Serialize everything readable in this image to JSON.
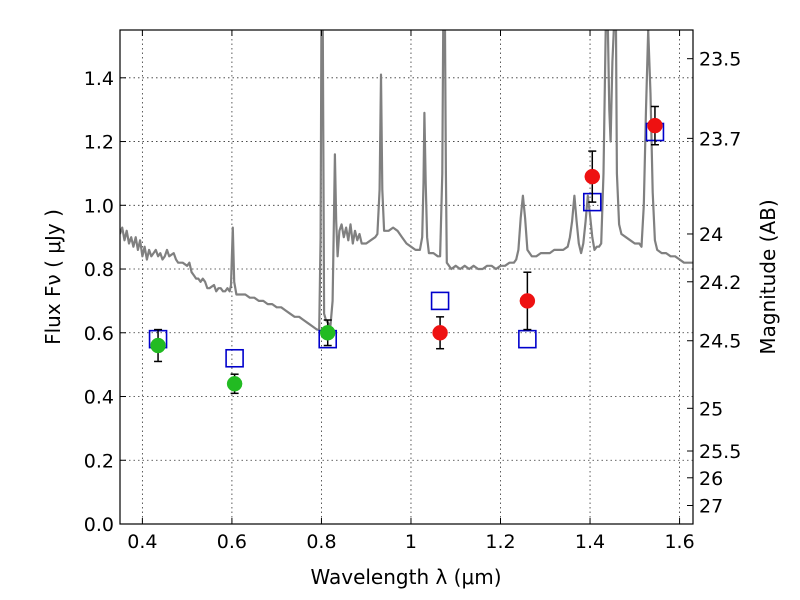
{
  "chart_data": {
    "type": "scatter",
    "title": "",
    "xlabel": "Wavelength  λ (μm)",
    "ylabel": "Flux  Fν  ( μJy )",
    "y2label": "Magnitude (AB)",
    "xlim": [
      0.35,
      1.63
    ],
    "ylim": [
      0.0,
      1.55
    ],
    "grid": true,
    "x_ticks": [
      {
        "value": 0.4,
        "label": "0.4"
      },
      {
        "value": 0.6,
        "label": "0.6"
      },
      {
        "value": 0.8,
        "label": "0.8"
      },
      {
        "value": 1.0,
        "label": "1"
      },
      {
        "value": 1.2,
        "label": "1.2"
      },
      {
        "value": 1.4,
        "label": "1.4"
      },
      {
        "value": 1.6,
        "label": "1.6"
      }
    ],
    "y_ticks": [
      {
        "value": 0.0,
        "label": "0.0"
      },
      {
        "value": 0.2,
        "label": "0.2"
      },
      {
        "value": 0.4,
        "label": "0.4"
      },
      {
        "value": 0.6,
        "label": "0.6"
      },
      {
        "value": 0.8,
        "label": "0.8"
      },
      {
        "value": 1.0,
        "label": "1.0"
      },
      {
        "value": 1.2,
        "label": "1.2"
      },
      {
        "value": 1.4,
        "label": "1.4"
      }
    ],
    "y2_ticks": [
      {
        "flux": 1.46,
        "label": "23.5"
      },
      {
        "flux": 1.21,
        "label": "23.7"
      },
      {
        "flux": 0.91,
        "label": "24"
      },
      {
        "flux": 0.76,
        "label": "24.2"
      },
      {
        "flux": 0.575,
        "label": "24.5"
      },
      {
        "flux": 0.363,
        "label": "25"
      },
      {
        "flux": 0.229,
        "label": "25.5"
      },
      {
        "flux": 0.145,
        "label": "26"
      },
      {
        "flux": 0.058,
        "label": "27"
      }
    ],
    "colors": {
      "model": "#808080",
      "optical": "#22bb22",
      "nir": "#ee1111",
      "model_phot": "#0000cc",
      "errorbar": "#000000"
    },
    "model_spectrum": [
      [
        0.35,
        0.91
      ],
      [
        0.355,
        0.93
      ],
      [
        0.36,
        0.89
      ],
      [
        0.365,
        0.92
      ],
      [
        0.37,
        0.88
      ],
      [
        0.375,
        0.9
      ],
      [
        0.38,
        0.87
      ],
      [
        0.385,
        0.9
      ],
      [
        0.39,
        0.86
      ],
      [
        0.395,
        0.89
      ],
      [
        0.4,
        0.84
      ],
      [
        0.405,
        0.87
      ],
      [
        0.41,
        0.83
      ],
      [
        0.415,
        0.86
      ],
      [
        0.42,
        0.84
      ],
      [
        0.425,
        0.85
      ],
      [
        0.43,
        0.86
      ],
      [
        0.435,
        0.84
      ],
      [
        0.44,
        0.85
      ],
      [
        0.445,
        0.83
      ],
      [
        0.45,
        0.84
      ],
      [
        0.455,
        0.86
      ],
      [
        0.46,
        0.84
      ],
      [
        0.47,
        0.85
      ],
      [
        0.475,
        0.83
      ],
      [
        0.48,
        0.82
      ],
      [
        0.49,
        0.82
      ],
      [
        0.5,
        0.81
      ],
      [
        0.505,
        0.82
      ],
      [
        0.51,
        0.79
      ],
      [
        0.515,
        0.78
      ],
      [
        0.52,
        0.77
      ],
      [
        0.525,
        0.77
      ],
      [
        0.53,
        0.76
      ],
      [
        0.535,
        0.77
      ],
      [
        0.54,
        0.76
      ],
      [
        0.545,
        0.74
      ],
      [
        0.55,
        0.74
      ],
      [
        0.56,
        0.75
      ],
      [
        0.565,
        0.73
      ],
      [
        0.57,
        0.74
      ],
      [
        0.575,
        0.74
      ],
      [
        0.58,
        0.73
      ],
      [
        0.585,
        0.73
      ],
      [
        0.59,
        0.74
      ],
      [
        0.595,
        0.73
      ],
      [
        0.598,
        0.75
      ],
      [
        0.6,
        0.84
      ],
      [
        0.602,
        0.93
      ],
      [
        0.605,
        0.76
      ],
      [
        0.61,
        0.72
      ],
      [
        0.62,
        0.72
      ],
      [
        0.63,
        0.72
      ],
      [
        0.64,
        0.71
      ],
      [
        0.65,
        0.71
      ],
      [
        0.66,
        0.7
      ],
      [
        0.67,
        0.7
      ],
      [
        0.68,
        0.69
      ],
      [
        0.69,
        0.69
      ],
      [
        0.7,
        0.68
      ],
      [
        0.71,
        0.68
      ],
      [
        0.72,
        0.67
      ],
      [
        0.73,
        0.66
      ],
      [
        0.74,
        0.65
      ],
      [
        0.75,
        0.65
      ],
      [
        0.76,
        0.64
      ],
      [
        0.77,
        0.63
      ],
      [
        0.78,
        0.62
      ],
      [
        0.79,
        0.61
      ],
      [
        0.795,
        0.61
      ],
      [
        0.798,
        0.9
      ],
      [
        0.8,
        1.55
      ],
      [
        0.803,
        1.55
      ],
      [
        0.806,
        0.66
      ],
      [
        0.81,
        0.64
      ],
      [
        0.815,
        0.63
      ],
      [
        0.82,
        0.62
      ],
      [
        0.825,
        0.7
      ],
      [
        0.828,
        0.97
      ],
      [
        0.83,
        1.16
      ],
      [
        0.833,
        0.95
      ],
      [
        0.836,
        0.84
      ],
      [
        0.84,
        0.92
      ],
      [
        0.845,
        0.94
      ],
      [
        0.85,
        0.9
      ],
      [
        0.855,
        0.93
      ],
      [
        0.86,
        0.89
      ],
      [
        0.865,
        0.94
      ],
      [
        0.87,
        0.88
      ],
      [
        0.875,
        0.92
      ],
      [
        0.88,
        0.89
      ],
      [
        0.885,
        0.91
      ],
      [
        0.89,
        0.88
      ],
      [
        0.9,
        0.88
      ],
      [
        0.91,
        0.89
      ],
      [
        0.92,
        0.9
      ],
      [
        0.925,
        0.91
      ],
      [
        0.93,
        1.05
      ],
      [
        0.933,
        1.41
      ],
      [
        0.936,
        1.05
      ],
      [
        0.94,
        0.92
      ],
      [
        0.95,
        0.92
      ],
      [
        0.96,
        0.93
      ],
      [
        0.97,
        0.92
      ],
      [
        0.98,
        0.9
      ],
      [
        0.99,
        0.88
      ],
      [
        1.0,
        0.87
      ],
      [
        1.01,
        0.86
      ],
      [
        1.02,
        0.86
      ],
      [
        1.025,
        0.9
      ],
      [
        1.028,
        1.07
      ],
      [
        1.03,
        1.29
      ],
      [
        1.033,
        1.07
      ],
      [
        1.036,
        0.9
      ],
      [
        1.04,
        0.85
      ],
      [
        1.05,
        0.85
      ],
      [
        1.06,
        0.84
      ],
      [
        1.065,
        0.84
      ],
      [
        1.07,
        1.1
      ],
      [
        1.072,
        1.55
      ],
      [
        1.076,
        1.55
      ],
      [
        1.078,
        1.1
      ],
      [
        1.08,
        0.82
      ],
      [
        1.09,
        0.8
      ],
      [
        1.1,
        0.81
      ],
      [
        1.11,
        0.8
      ],
      [
        1.12,
        0.81
      ],
      [
        1.13,
        0.8
      ],
      [
        1.14,
        0.81
      ],
      [
        1.15,
        0.8
      ],
      [
        1.16,
        0.8
      ],
      [
        1.17,
        0.81
      ],
      [
        1.18,
        0.81
      ],
      [
        1.19,
        0.8
      ],
      [
        1.2,
        0.81
      ],
      [
        1.21,
        0.81
      ],
      [
        1.22,
        0.82
      ],
      [
        1.23,
        0.82
      ],
      [
        1.235,
        0.83
      ],
      [
        1.24,
        0.86
      ],
      [
        1.245,
        0.96
      ],
      [
        1.25,
        1.03
      ],
      [
        1.255,
        0.96
      ],
      [
        1.26,
        0.86
      ],
      [
        1.27,
        0.84
      ],
      [
        1.28,
        0.84
      ],
      [
        1.29,
        0.85
      ],
      [
        1.3,
        0.85
      ],
      [
        1.31,
        0.85
      ],
      [
        1.32,
        0.86
      ],
      [
        1.33,
        0.86
      ],
      [
        1.34,
        0.86
      ],
      [
        1.35,
        0.87
      ],
      [
        1.355,
        0.9
      ],
      [
        1.36,
        0.95
      ],
      [
        1.365,
        1.03
      ],
      [
        1.37,
        0.95
      ],
      [
        1.375,
        0.88
      ],
      [
        1.38,
        0.85
      ],
      [
        1.385,
        0.88
      ],
      [
        1.39,
        0.95
      ],
      [
        1.395,
        1.03
      ],
      [
        1.4,
        0.97
      ],
      [
        1.405,
        0.9
      ],
      [
        1.41,
        0.86
      ],
      [
        1.415,
        0.87
      ],
      [
        1.42,
        0.87
      ],
      [
        1.425,
        0.88
      ],
      [
        1.43,
        1.1
      ],
      [
        1.435,
        1.55
      ],
      [
        1.44,
        1.55
      ],
      [
        1.443,
        1.3
      ],
      [
        1.446,
        1.2
      ],
      [
        1.45,
        1.45
      ],
      [
        1.453,
        1.55
      ],
      [
        1.458,
        1.55
      ],
      [
        1.46,
        1.1
      ],
      [
        1.465,
        0.94
      ],
      [
        1.47,
        0.91
      ],
      [
        1.48,
        0.9
      ],
      [
        1.49,
        0.89
      ],
      [
        1.5,
        0.88
      ],
      [
        1.51,
        0.88
      ],
      [
        1.515,
        0.87
      ],
      [
        1.52,
        1.0
      ],
      [
        1.525,
        1.3
      ],
      [
        1.53,
        1.55
      ],
      [
        1.535,
        1.35
      ],
      [
        1.54,
        1.04
      ],
      [
        1.545,
        0.89
      ],
      [
        1.55,
        0.86
      ],
      [
        1.56,
        0.85
      ],
      [
        1.57,
        0.85
      ],
      [
        1.58,
        0.84
      ],
      [
        1.59,
        0.84
      ],
      [
        1.6,
        0.83
      ],
      [
        1.61,
        0.82
      ],
      [
        1.62,
        0.82
      ],
      [
        1.63,
        0.82
      ]
    ],
    "optical_photometry": [
      {
        "x": 0.435,
        "y": 0.56,
        "err": 0.05
      },
      {
        "x": 0.606,
        "y": 0.44,
        "err": 0.03
      },
      {
        "x": 0.814,
        "y": 0.6,
        "err": 0.04
      }
    ],
    "nir_photometry": [
      {
        "x": 1.065,
        "y": 0.6,
        "err": 0.05
      },
      {
        "x": 1.26,
        "y": 0.7,
        "err": 0.09
      },
      {
        "x": 1.405,
        "y": 1.09,
        "err": 0.08
      },
      {
        "x": 1.545,
        "y": 1.25,
        "err": 0.06
      }
    ],
    "model_photometry": [
      {
        "x": 0.435,
        "y": 0.58
      },
      {
        "x": 0.606,
        "y": 0.52
      },
      {
        "x": 0.814,
        "y": 0.58
      },
      {
        "x": 1.065,
        "y": 0.7
      },
      {
        "x": 1.26,
        "y": 0.58
      },
      {
        "x": 1.405,
        "y": 1.01
      },
      {
        "x": 1.545,
        "y": 1.23
      }
    ]
  }
}
